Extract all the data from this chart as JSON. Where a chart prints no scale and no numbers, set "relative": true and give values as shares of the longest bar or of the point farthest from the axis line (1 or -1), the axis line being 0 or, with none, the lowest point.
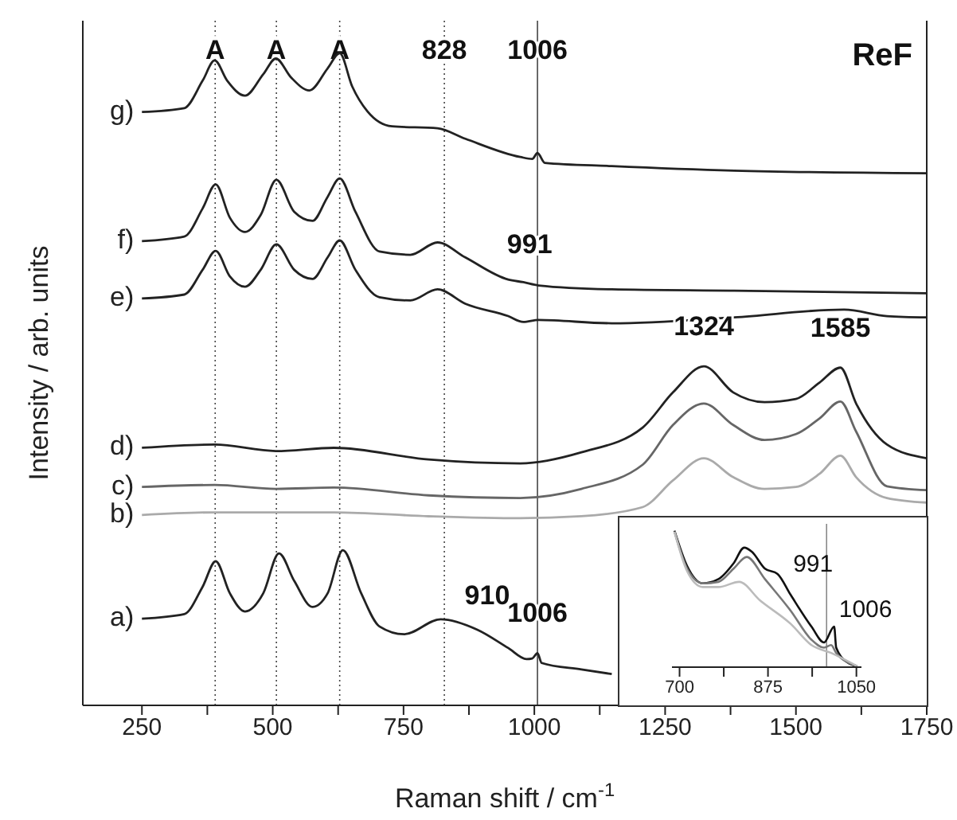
{
  "chart_data": [
    {
      "type": "line",
      "title": "ReF",
      "xlabel": "Raman shift / cm$^{-1}$",
      "ylabel": "Intensity / arb. units",
      "relative": true,
      "xlim": [
        137,
        1750
      ],
      "xticks": [
        250,
        {
          "value": 375,
          "label": null
        },
        500,
        {
          "value": 625,
          "label": null
        },
        750,
        {
          "value": 875,
          "label": null
        },
        1000,
        {
          "value": 1125,
          "label": null
        },
        1250,
        {
          "value": 1375,
          "label": null
        },
        1500,
        {
          "value": 1625,
          "label": null
        },
        1750
      ],
      "marker": "none",
      "line_style": "solid",
      "ref_lines": [
        {
          "axis": "x",
          "value": 390,
          "label": "A",
          "line_style": "dotted"
        },
        {
          "axis": "x",
          "value": 507,
          "label": "A",
          "line_style": "dotted"
        },
        {
          "axis": "x",
          "value": 628,
          "label": "A",
          "line_style": "dotted"
        },
        {
          "axis": "x",
          "value": 828,
          "label": "828",
          "line_style": "dotted"
        },
        {
          "axis": "x",
          "value": 1006,
          "label": "1006",
          "line_style": "solid"
        }
      ],
      "annotations": [
        {
          "text": "991",
          "x": 991,
          "y": 0.646
        },
        {
          "text": "1324",
          "x": 1324,
          "y": 0.52
        },
        {
          "text": "1585",
          "x": 1585,
          "y": 0.518
        },
        {
          "text": "910",
          "x": 910,
          "y": 0.107
        },
        {
          "text": "1006",
          "x": 1006,
          "y": 0.08
        }
      ],
      "series": [
        {
          "name": "g)",
          "color": "#222222",
          "x": [
            250,
            331,
            366,
            389,
            413,
            447,
            482,
            506,
            535,
            570,
            605,
            628,
            652,
            681,
            728,
            815,
            868,
            973,
            996,
            1006,
            1020,
            1148,
            1382,
            1750
          ],
          "values": [
            0.91,
            0.916,
            0.958,
            0.989,
            0.958,
            0.935,
            0.968,
            0.992,
            0.963,
            0.943,
            0.977,
            1.0,
            0.949,
            0.911,
            0.888,
            0.885,
            0.869,
            0.841,
            0.838,
            0.847,
            0.832,
            0.827,
            0.82,
            0.816
          ]
        },
        {
          "name": "f)",
          "color": "#222222",
          "x": [
            250,
            331,
            366,
            391,
            418,
            447,
            477,
            507,
            541,
            576,
            605,
            628,
            658,
            704,
            763,
            815,
            868,
            950,
            979,
            1008,
            1148,
            1382,
            1750
          ],
          "values": [
            0.712,
            0.719,
            0.762,
            0.799,
            0.748,
            0.726,
            0.752,
            0.806,
            0.757,
            0.743,
            0.78,
            0.808,
            0.757,
            0.696,
            0.691,
            0.71,
            0.687,
            0.653,
            0.649,
            0.644,
            0.638,
            0.636,
            0.632
          ]
        },
        {
          "name": "e)",
          "color": "#222222",
          "x": [
            250,
            331,
            366,
            391,
            418,
            447,
            477,
            507,
            541,
            576,
            605,
            628,
            658,
            704,
            763,
            815,
            868,
            950,
            979,
            1008,
            1148,
            1382,
            1592,
            1674,
            1750
          ],
          "values": [
            0.624,
            0.63,
            0.668,
            0.697,
            0.658,
            0.642,
            0.668,
            0.707,
            0.668,
            0.654,
            0.687,
            0.713,
            0.668,
            0.626,
            0.621,
            0.638,
            0.616,
            0.597,
            0.588,
            0.591,
            0.586,
            0.595,
            0.607,
            0.597,
            0.595
          ]
        },
        {
          "name": "d)",
          "color": "#222222",
          "x": [
            250,
            389,
            506,
            617,
            798,
            973,
            1090,
            1207,
            1265,
            1324,
            1380,
            1440,
            1500,
            1545,
            1585,
            1615,
            1674,
            1750
          ],
          "values": [
            0.395,
            0.4,
            0.39,
            0.395,
            0.377,
            0.371,
            0.388,
            0.426,
            0.48,
            0.52,
            0.48,
            0.465,
            0.47,
            0.495,
            0.518,
            0.463,
            0.4,
            0.379
          ]
        },
        {
          "name": "c)",
          "color": "#666666",
          "x": [
            250,
            389,
            506,
            617,
            798,
            973,
            1090,
            1207,
            1265,
            1324,
            1380,
            1440,
            1500,
            1545,
            1585,
            1615,
            1674,
            1750
          ],
          "values": [
            0.335,
            0.338,
            0.332,
            0.334,
            0.322,
            0.318,
            0.332,
            0.369,
            0.43,
            0.463,
            0.43,
            0.407,
            0.416,
            0.44,
            0.466,
            0.42,
            0.336,
            0.33
          ]
        },
        {
          "name": "b)",
          "color": "#aaaaaa",
          "x": [
            250,
            389,
            617,
            798,
            973,
            1090,
            1207,
            1265,
            1324,
            1380,
            1440,
            1500,
            1545,
            1585,
            1615,
            1674,
            1750
          ],
          "values": [
            0.292,
            0.296,
            0.296,
            0.29,
            0.287,
            0.29,
            0.304,
            0.345,
            0.379,
            0.35,
            0.332,
            0.335,
            0.355,
            0.383,
            0.35,
            0.318,
            0.311
          ]
        },
        {
          "name": "a)",
          "color": "#222222",
          "x": [
            250,
            331,
            366,
            391,
            418,
            447,
            482,
            512,
            541,
            576,
            605,
            634,
            669,
            704,
            751,
            821,
            891,
            950,
            985,
            996,
            1006,
            1014,
            1090,
            1148
          ],
          "values": [
            0.133,
            0.14,
            0.182,
            0.221,
            0.172,
            0.144,
            0.172,
            0.233,
            0.191,
            0.151,
            0.172,
            0.238,
            0.172,
            0.121,
            0.109,
            0.132,
            0.116,
            0.088,
            0.071,
            0.072,
            0.08,
            0.065,
            0.055,
            0.048
          ]
        }
      ]
    },
    {
      "type": "line",
      "relative": true,
      "xlim": [
        685,
        1060
      ],
      "xticks": [
        700,
        {
          "value": 787.5,
          "label": null
        },
        875,
        {
          "value": 962.5,
          "label": null
        },
        1050
      ],
      "marker": "none",
      "line_style": "solid",
      "ref_lines": [
        {
          "axis": "x",
          "value": 991,
          "label": "991",
          "color": "#888888"
        }
      ],
      "annotations": [
        {
          "text": "1006",
          "x": 1006,
          "y": 0.297
        }
      ],
      "series": [
        {
          "color": "#111111",
          "x": [
            690,
            715,
            746,
            777,
            807,
            828,
            843,
            869,
            894,
            920,
            961,
            986,
            1006,
            1010,
            1032,
            1051
          ],
          "values": [
            1.0,
            0.741,
            0.614,
            0.645,
            0.761,
            0.876,
            0.846,
            0.722,
            0.683,
            0.529,
            0.297,
            0.181,
            0.297,
            0.143,
            0.035,
            0.008
          ]
        },
        {
          "color": "#777777",
          "x": [
            690,
            715,
            746,
            777,
            807,
            833,
            869,
            920,
            961,
            986,
            1000,
            1010,
            1051
          ],
          "values": [
            0.992,
            0.722,
            0.614,
            0.625,
            0.722,
            0.807,
            0.645,
            0.413,
            0.201,
            0.143,
            0.162,
            0.104,
            0.008
          ]
        },
        {
          "color": "#bbbbbb",
          "x": [
            690,
            715,
            746,
            777,
            818,
            859,
            920,
            961,
            1000,
            1051
          ],
          "values": [
            0.992,
            0.703,
            0.587,
            0.587,
            0.625,
            0.49,
            0.317,
            0.162,
            0.104,
            0.008
          ]
        }
      ]
    }
  ]
}
